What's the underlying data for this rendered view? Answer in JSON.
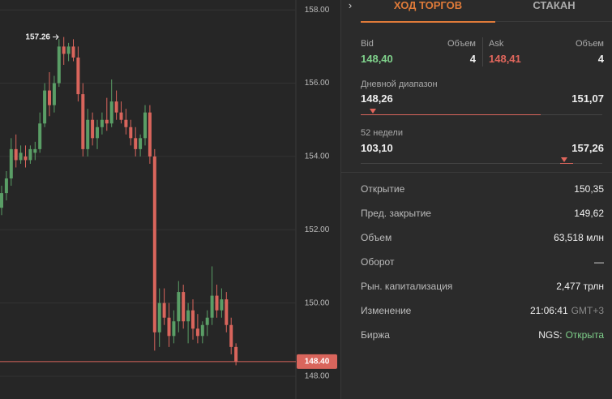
{
  "chart_data": {
    "type": "candlestick",
    "open": [
      152.6,
      153.0,
      153.4,
      154.2,
      153.9,
      154.0,
      153.9,
      154.1,
      154.2,
      154.9,
      155.8,
      155.4,
      156.0,
      157.0,
      156.8,
      157.0,
      156.7,
      155.7,
      154.2,
      155.0,
      154.5,
      154.8,
      155.0,
      154.9,
      155.5,
      155.2,
      155.0,
      154.8,
      154.5,
      154.2,
      154.5,
      155.2,
      154.0,
      149.2,
      150.0,
      149.6,
      149.1,
      149.5,
      150.3,
      149.5,
      149.8,
      149.3,
      149.1,
      149.4,
      149.6,
      150.2,
      149.8,
      150.1,
      149.4,
      148.8
    ],
    "high": [
      153.2,
      153.6,
      154.5,
      154.6,
      154.3,
      154.3,
      154.3,
      154.4,
      155.2,
      156.0,
      156.3,
      156.2,
      157.2,
      157.26,
      157.1,
      157.2,
      157.0,
      156.0,
      155.3,
      155.2,
      155.0,
      155.2,
      155.6,
      156.1,
      155.8,
      155.5,
      155.3,
      155.0,
      154.8,
      154.6,
      155.4,
      155.4,
      154.2,
      150.4,
      150.4,
      150.0,
      149.8,
      150.6,
      150.5,
      150.0,
      150.1,
      149.7,
      149.5,
      149.8,
      151.0,
      150.5,
      150.4,
      150.3,
      149.6,
      148.9
    ],
    "low": [
      152.4,
      152.8,
      153.2,
      153.7,
      153.8,
      153.7,
      153.8,
      153.9,
      154.1,
      154.8,
      155.1,
      155.2,
      155.9,
      156.5,
      156.6,
      156.6,
      155.5,
      154.0,
      154.0,
      154.3,
      154.2,
      154.6,
      154.7,
      154.8,
      155.0,
      154.9,
      154.6,
      154.3,
      154.0,
      154.0,
      154.3,
      153.8,
      148.7,
      148.8,
      149.4,
      148.8,
      148.9,
      149.2,
      149.3,
      148.9,
      149.0,
      148.9,
      148.9,
      149.1,
      149.4,
      149.6,
      149.6,
      149.2,
      148.6,
      148.3
    ],
    "close": [
      153.0,
      153.4,
      154.2,
      153.9,
      154.1,
      153.9,
      154.2,
      154.2,
      154.9,
      155.8,
      155.4,
      156.0,
      157.0,
      156.8,
      157.0,
      156.7,
      155.7,
      154.2,
      155.0,
      154.5,
      154.8,
      155.0,
      154.9,
      155.5,
      155.2,
      155.0,
      154.8,
      154.5,
      154.2,
      154.5,
      155.2,
      154.0,
      149.2,
      150.0,
      149.6,
      149.1,
      149.5,
      150.3,
      149.5,
      149.8,
      149.3,
      149.1,
      149.4,
      149.6,
      150.2,
      149.8,
      150.1,
      149.4,
      148.8,
      148.4
    ],
    "up_color": "#5a9e66",
    "down_color": "#d9655c",
    "ylim": [
      147.38,
      158.27
    ],
    "yticks": [
      {
        "value": 148,
        "label": "148.00"
      },
      {
        "value": 150,
        "label": "150.00"
      },
      {
        "value": 152,
        "label": "152.00"
      },
      {
        "value": 154,
        "label": "154.00"
      },
      {
        "value": 156,
        "label": "156.00"
      },
      {
        "value": 158,
        "label": "158.00"
      }
    ],
    "grid": true,
    "last_price": {
      "value": 148.4,
      "label": "148.40"
    },
    "high_marker": {
      "value": 157.26,
      "label": "157.26"
    }
  },
  "panel": {
    "tabs": [
      "ХОД ТОРГОВ",
      "СТАКАН"
    ],
    "bid": {
      "label": "Bid",
      "value": "148,40",
      "volume_label": "Объем",
      "volume": "4"
    },
    "ask": {
      "label": "Ask",
      "value": "148,41",
      "volume_label": "Объем",
      "volume": "4"
    },
    "day_range": {
      "label": "Дневной диапазон",
      "low": "148,26",
      "high": "151,07"
    },
    "week52": {
      "label": "52 недели",
      "low": "103,10",
      "high": "157,26"
    },
    "rows": [
      {
        "label": "Открытие",
        "value": "150,35"
      },
      {
        "label": "Пред. закрытие",
        "value": "149,62"
      },
      {
        "label": "Объем",
        "value": "63,518 млн"
      },
      {
        "label": "Оборот",
        "value": "—"
      },
      {
        "label": "Рын. капитализация",
        "value": "2,477 трлн"
      },
      {
        "label": "Изменение",
        "value": "21:06:41",
        "suffix": "GMT+3"
      },
      {
        "label": "Биржа",
        "value": "NGS:",
        "status": "Открыта"
      }
    ]
  }
}
